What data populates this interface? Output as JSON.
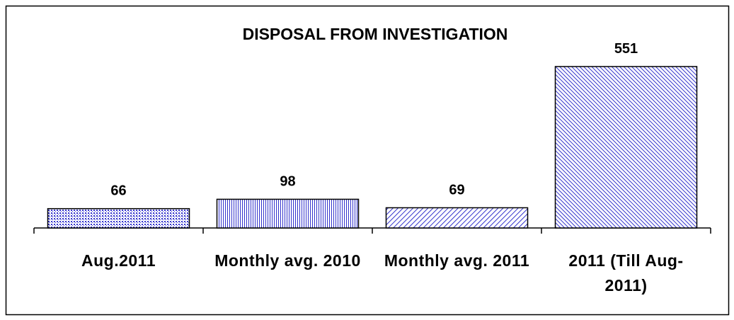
{
  "chart_data": {
    "type": "bar",
    "title": "DISPOSAL FROM INVESTIGATION",
    "categories": [
      "Aug.2011",
      "Monthly avg. 2010",
      "Monthly avg. 2011",
      "2011 (Till Aug-2011)"
    ],
    "values": [
      66,
      98,
      69,
      551
    ],
    "color": "#3333cc"
  }
}
